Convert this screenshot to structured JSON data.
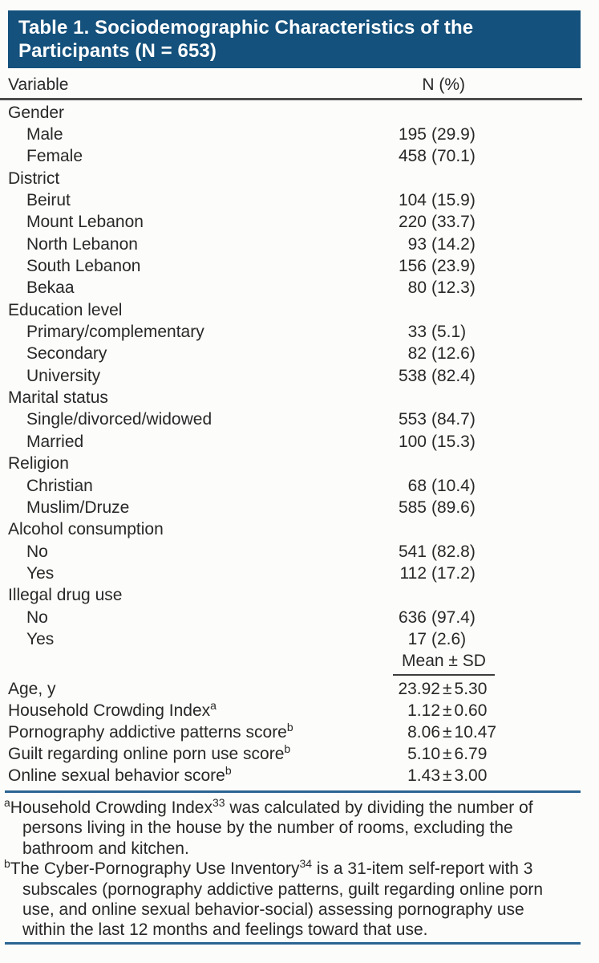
{
  "title": "Table 1. Sociodemographic Characteristics of the Participants (N = 653)",
  "columns": {
    "variable": "Variable",
    "n_pct": "N (%)",
    "mean_sd": "Mean ± SD"
  },
  "rows": [
    {
      "label": "Gender",
      "type": "group"
    },
    {
      "label": "Male",
      "n": "195",
      "pct": "(29.9)"
    },
    {
      "label": "Female",
      "n": "458",
      "pct": "(70.1)"
    },
    {
      "label": "District",
      "type": "group"
    },
    {
      "label": "Beirut",
      "n": "104",
      "pct": "(15.9)"
    },
    {
      "label": "Mount Lebanon",
      "n": "220",
      "pct": "(33.7)"
    },
    {
      "label": "North Lebanon",
      "n": "93",
      "pct": "(14.2)"
    },
    {
      "label": "South Lebanon",
      "n": "156",
      "pct": "(23.9)"
    },
    {
      "label": "Bekaa",
      "n": "80",
      "pct": "(12.3)"
    },
    {
      "label": "Education level",
      "type": "group"
    },
    {
      "label": "Primary/complementary",
      "n": "33",
      "pct": "(5.1)"
    },
    {
      "label": "Secondary",
      "n": "82",
      "pct": "(12.6)"
    },
    {
      "label": "University",
      "n": "538",
      "pct": "(82.4)"
    },
    {
      "label": "Marital status",
      "type": "group"
    },
    {
      "label": "Single/divorced/widowed",
      "n": "553",
      "pct": "(84.7)"
    },
    {
      "label": "Married",
      "n": "100",
      "pct": "(15.3)"
    },
    {
      "label": "Religion",
      "type": "group"
    },
    {
      "label": "Christian",
      "n": "68",
      "pct": "(10.4)"
    },
    {
      "label": "Muslim/Druze",
      "n": "585",
      "pct": "(89.6)"
    },
    {
      "label": "Alcohol consumption",
      "type": "group"
    },
    {
      "label": "No",
      "n": "541",
      "pct": "(82.8)"
    },
    {
      "label": "Yes",
      "n": "112",
      "pct": "(17.2)"
    },
    {
      "label": "Illegal drug use",
      "type": "group"
    },
    {
      "label": "No",
      "n": "636",
      "pct": "(97.4)"
    },
    {
      "label": "Yes",
      "n": "17",
      "pct": "(2.6)"
    }
  ],
  "mean_rows": [
    {
      "label": "Age, y",
      "sup": "",
      "mean": "23.92",
      "pm": "±",
      "sd": "5.30"
    },
    {
      "label": "Household Crowding Index",
      "sup": "a",
      "mean": "1.12",
      "pm": "±",
      "sd": "0.60"
    },
    {
      "label": "Pornography addictive patterns score",
      "sup": "b",
      "mean": "8.06",
      "pm": "±",
      "sd": "10.47"
    },
    {
      "label": "Guilt regarding online porn use score",
      "sup": "b",
      "mean": "5.10",
      "pm": "±",
      "sd": "6.79"
    },
    {
      "label": "Online sexual behavior score",
      "sup": "b",
      "mean": "1.43",
      "pm": "±",
      "sd": "3.00"
    }
  ],
  "footnotes": [
    {
      "marker": "a",
      "pre": "Household Crowding Index",
      "ref": "33",
      "post": " was calculated by dividing the number of persons living in the house by the number of rooms, excluding the bathroom and kitchen."
    },
    {
      "marker": "b",
      "pre": "The Cyber-Pornography Use Inventory",
      "ref": "34",
      "post": " is a 31-item self-report with 3 subscales (pornography addictive patterns, guilt regarding online porn use, and online sexual behavior-social) assessing pornography use within the last 12 months and feelings toward that use."
    }
  ],
  "colors": {
    "banner_bg": "#14517c",
    "rule_blue": "#2b6492",
    "rule_dark": "#4c4c4c"
  }
}
